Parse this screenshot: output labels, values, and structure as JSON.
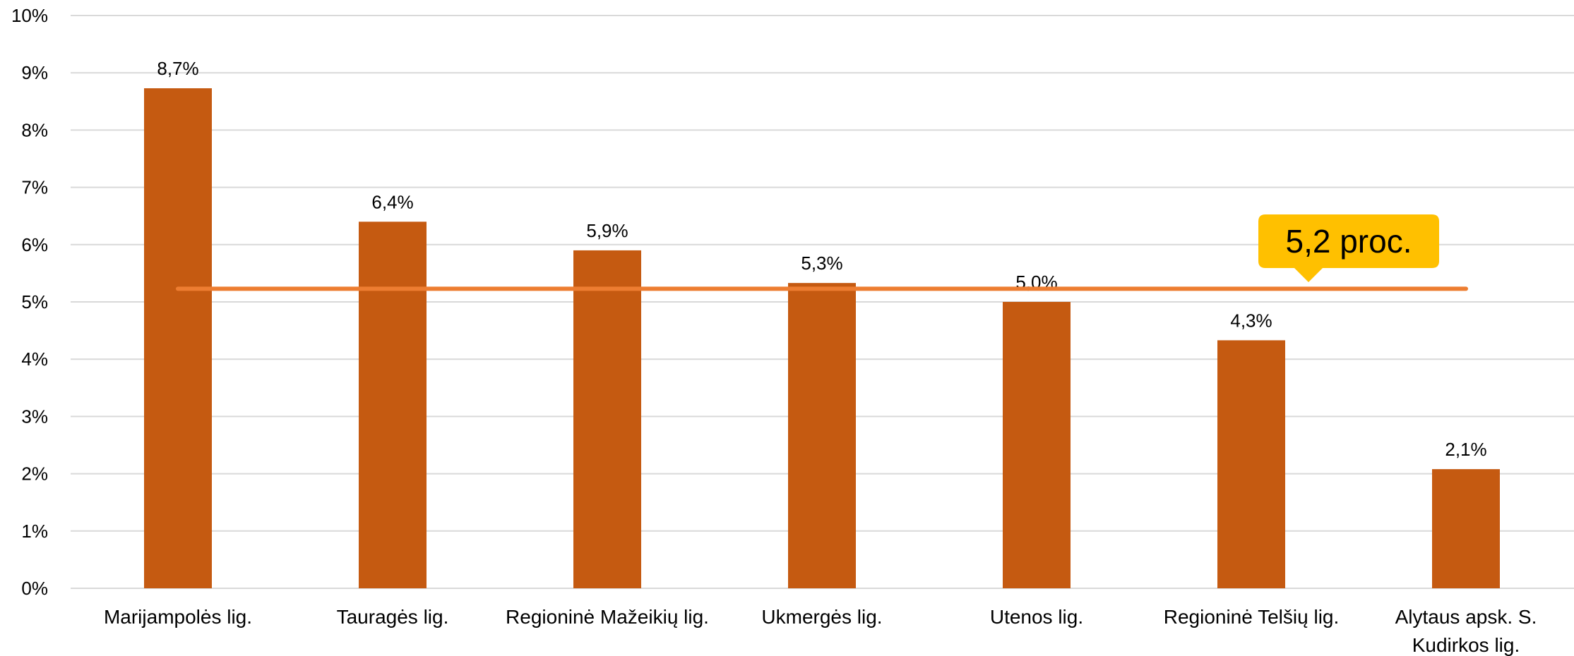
{
  "chart_data": {
    "type": "bar",
    "categories": [
      "Marijampolės lig.",
      "Tauragės lig.",
      "Regioninė Mažeikių lig.",
      "Ukmergės lig.",
      "Utenos lig.",
      "Regioninė Telšių lig.",
      "Alytaus apsk. S. Kudirkos lig."
    ],
    "category_label_lines": [
      [
        "Marijampolės lig."
      ],
      [
        "Tauragės lig."
      ],
      [
        "Regioninė Mažeikių lig."
      ],
      [
        "Ukmergės lig."
      ],
      [
        "Utenos lig."
      ],
      [
        "Regioninė Telšių lig."
      ],
      [
        "Alytaus apsk. S.",
        "Kudirkos lig."
      ]
    ],
    "values": [
      8.73,
      6.4,
      5.9,
      5.33,
      5.0,
      4.33,
      2.08
    ],
    "data_labels": [
      "8,7%",
      "6,4%",
      "5,9%",
      "5,3%",
      "5,0%",
      "4,3%",
      "2,1%"
    ],
    "ylim": [
      0,
      10
    ],
    "yticks": [
      0,
      1,
      2,
      3,
      4,
      5,
      6,
      7,
      8,
      9,
      10
    ],
    "ytick_labels": [
      "0%",
      "1%",
      "2%",
      "3%",
      "4%",
      "5%",
      "6%",
      "7%",
      "8%",
      "9%",
      "10%"
    ],
    "grid": true,
    "legend": "none",
    "title": "",
    "xlabel": "",
    "ylabel": "",
    "average_line": {
      "value": 5.23,
      "callout_label": "5,2 proc."
    },
    "colors": {
      "bar": "#c55a11",
      "average_line": "#ed7d31",
      "callout": "#ffc000",
      "grid": "#d9d9d9"
    }
  }
}
